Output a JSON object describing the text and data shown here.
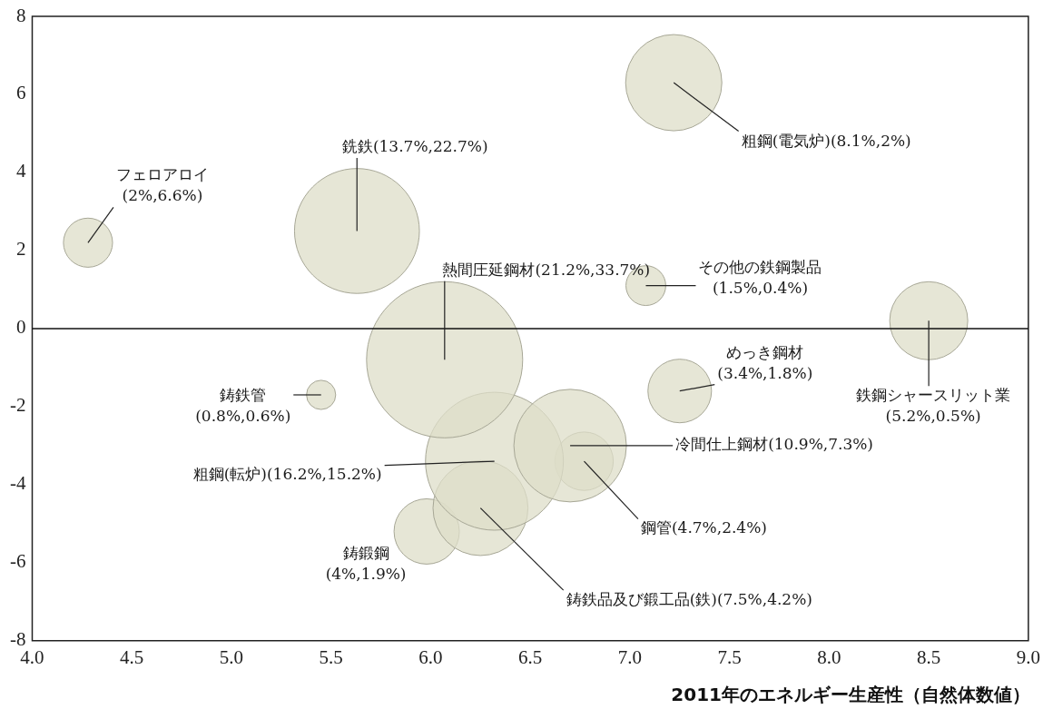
{
  "chart_data": {
    "type": "bubble",
    "xlabel": "2011年のエネルギー生産性（自然体数値）",
    "xlim": [
      4,
      9
    ],
    "xticks": [
      {
        "value": 4,
        "label": "4.0"
      },
      {
        "value": 4.5,
        "label": "4.5"
      },
      {
        "value": 5,
        "label": "5.0"
      },
      {
        "value": 5.5,
        "label": "5.5"
      },
      {
        "value": 6,
        "label": "6.0"
      },
      {
        "value": 6.5,
        "label": "6.5"
      },
      {
        "value": 7,
        "label": "7.0"
      },
      {
        "value": 7.5,
        "label": "7.5"
      },
      {
        "value": 8,
        "label": "8.0"
      },
      {
        "value": 8.5,
        "label": "8.5"
      },
      {
        "value": 9,
        "label": "9.0"
      }
    ],
    "ylim": [
      -8,
      8
    ],
    "yticks": [
      -8,
      -6,
      -4,
      -2,
      0,
      2,
      4,
      6,
      8
    ],
    "grid": false,
    "legend": false,
    "ref_lines": [
      {
        "axis": "y",
        "value": 0
      }
    ],
    "series": [
      {
        "name": "フェロアロイ\n(2%,6.6%)",
        "color": "#dedec8",
        "x": [
          4.28
        ],
        "values": [
          2.2
        ],
        "sizes": [
          0.099
        ]
      },
      {
        "name": "銑鉄(13.7%,22.7%)",
        "color": "#dedec8",
        "x": [
          5.63
        ],
        "values": [
          2.5
        ],
        "sizes": [
          0.64
        ]
      },
      {
        "name": "粗鋼(電気炉)(8.1%,2%)",
        "color": "#dedec8",
        "x": [
          7.22
        ],
        "values": [
          6.3
        ],
        "sizes": [
          0.38
        ]
      },
      {
        "name": "熱間圧延鋼材(21.2%,33.7%)",
        "color": "#dedec8",
        "x": [
          6.07
        ],
        "values": [
          -0.8
        ],
        "sizes": [
          1
        ]
      },
      {
        "name": "その他の鉄鋼製品\n(1.5%,0.4%)",
        "color": "#dedec8",
        "x": [
          7.08
        ],
        "values": [
          1.1
        ],
        "sizes": [
          0.065
        ]
      },
      {
        "name": "鉄鋼シャースリット業\n(5.2%,0.5%)",
        "color": "#dedec8",
        "x": [
          8.5
        ],
        "values": [
          0.2
        ],
        "sizes": [
          0.25
        ]
      },
      {
        "name": "めっき鋼材\n(3.4%,1.8%)",
        "color": "#dedec8",
        "x": [
          7.25
        ],
        "values": [
          -1.6
        ],
        "sizes": [
          0.166
        ]
      },
      {
        "name": "鋳鉄管\n(0.8%,0.6%)",
        "color": "#dedec8",
        "x": [
          5.45
        ],
        "values": [
          -1.7
        ],
        "sizes": [
          0.035
        ]
      },
      {
        "name": "冷間仕上鋼材(10.9%,7.3%)",
        "color": "#dedec8",
        "x": [
          6.7
        ],
        "values": [
          -3.0
        ],
        "sizes": [
          0.52
        ]
      },
      {
        "name": "粗鋼(転炉)(16.2%,15.2%)",
        "color": "#dedec8",
        "x": [
          6.32
        ],
        "values": [
          -3.4
        ],
        "sizes": [
          0.78
        ]
      },
      {
        "name": "鋼管(4.7%,2.4%)",
        "color": "#dedec8",
        "x": [
          6.77
        ],
        "values": [
          -3.4
        ],
        "sizes": [
          0.14
        ]
      },
      {
        "name": "鋳鉄品及び鍛工品(鉄)(7.5%,4.2%)",
        "color": "#dedec8",
        "x": [
          6.25
        ],
        "values": [
          -4.6
        ],
        "sizes": [
          0.37
        ]
      },
      {
        "name": "鋳鍛鋼\n(4%,1.9%)",
        "color": "#dedec8",
        "x": [
          5.98
        ],
        "values": [
          -5.2
        ],
        "sizes": [
          0.175
        ]
      }
    ]
  }
}
